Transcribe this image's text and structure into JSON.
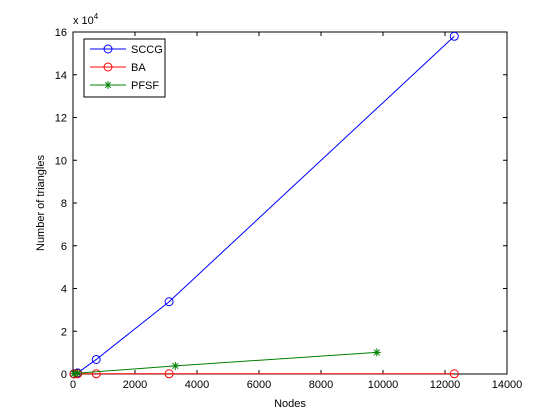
{
  "chart_data": {
    "type": "line",
    "xlabel": "Nodes",
    "ylabel": "Number of triangles",
    "y_exponent_label": "x 10",
    "y_exponent_power": "4",
    "xlim": [
      0,
      14000
    ],
    "ylim": [
      0,
      16
    ],
    "x_ticks": [
      0,
      2000,
      4000,
      6000,
      8000,
      10000,
      12000,
      14000
    ],
    "y_ticks": [
      0,
      2,
      4,
      6,
      8,
      10,
      12,
      14,
      16
    ],
    "grid": false,
    "legend_position": "top-left",
    "series": [
      {
        "name": "SCCG",
        "color": "#0000ff",
        "marker": "circle",
        "points": [
          [
            30,
            0.01
          ],
          [
            150,
            0.05
          ],
          [
            750,
            0.68
          ],
          [
            3100,
            3.38
          ],
          [
            12300,
            15.8
          ]
        ]
      },
      {
        "name": "BA",
        "color": "#ff0000",
        "marker": "circle",
        "points": [
          [
            30,
            0.0
          ],
          [
            150,
            0.01
          ],
          [
            750,
            0.01
          ],
          [
            3100,
            0.01
          ],
          [
            12300,
            0.01
          ]
        ]
      },
      {
        "name": "PFSF",
        "color": "#008000",
        "marker": "star",
        "points": [
          [
            30,
            0.01
          ],
          [
            150,
            0.04
          ],
          [
            3300,
            0.38
          ],
          [
            9800,
            1.01
          ]
        ]
      }
    ]
  }
}
